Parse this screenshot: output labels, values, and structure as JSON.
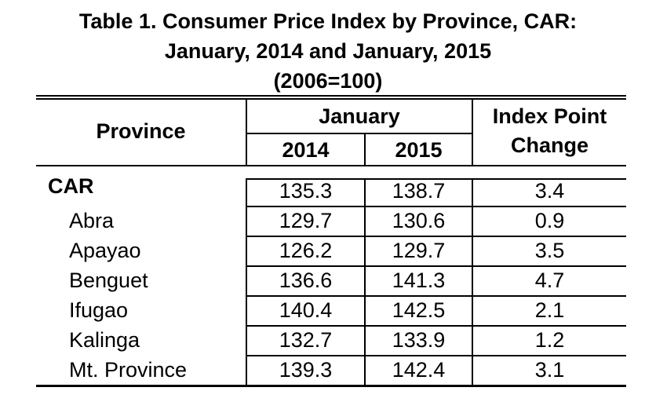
{
  "title": {
    "line1": "Table 1. Consumer Price Index by Province, CAR:",
    "line2": "January, 2014 and January, 2015",
    "line3": "(2006=100)"
  },
  "headers": {
    "province": "Province",
    "january": "January",
    "year1": "2014",
    "year2": "2015",
    "change_line1": "Index Point",
    "change_line2": "Change"
  },
  "rows": [
    {
      "province": "CAR",
      "y2014": "135.3",
      "y2015": "138.7",
      "change": "3.4"
    },
    {
      "province": "Abra",
      "y2014": "129.7",
      "y2015": "130.6",
      "change": "0.9"
    },
    {
      "province": "Apayao",
      "y2014": "126.2",
      "y2015": "129.7",
      "change": "3.5"
    },
    {
      "province": "Benguet",
      "y2014": "136.6",
      "y2015": "141.3",
      "change": "4.7"
    },
    {
      "province": "Ifugao",
      "y2014": "140.4",
      "y2015": "142.5",
      "change": "2.1"
    },
    {
      "province": "Kalinga",
      "y2014": "132.7",
      "y2015": "133.9",
      "change": "1.2"
    },
    {
      "province": "Mt. Province",
      "y2014": "139.3",
      "y2015": "142.4",
      "change": "3.1"
    }
  ]
}
